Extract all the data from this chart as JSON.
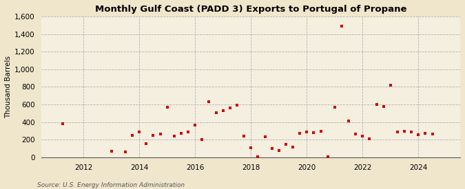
{
  "title": "Monthly Gulf Coast (PADD 3) Exports to Portugal of Propane",
  "ylabel": "Thousand Barrels",
  "source": "Source: U.S. Energy Information Administration",
  "bg_color": "#f0e6cc",
  "plot_bg_color": "#f5efe0",
  "marker_color": "#cc0000",
  "ylim": [
    0,
    1600
  ],
  "yticks": [
    0,
    200,
    400,
    600,
    800,
    1000,
    1200,
    1400,
    1600
  ],
  "xlim": [
    2010.5,
    2025.5
  ],
  "xticks": [
    2012,
    2014,
    2016,
    2018,
    2020,
    2022,
    2024
  ],
  "data": [
    [
      2011.25,
      385
    ],
    [
      2013.0,
      70
    ],
    [
      2013.5,
      65
    ],
    [
      2013.75,
      250
    ],
    [
      2014.0,
      290
    ],
    [
      2014.25,
      155
    ],
    [
      2014.5,
      250
    ],
    [
      2014.75,
      265
    ],
    [
      2015.0,
      570
    ],
    [
      2015.25,
      245
    ],
    [
      2015.5,
      270
    ],
    [
      2015.75,
      290
    ],
    [
      2016.0,
      365
    ],
    [
      2016.25,
      205
    ],
    [
      2016.5,
      630
    ],
    [
      2016.75,
      510
    ],
    [
      2017.0,
      530
    ],
    [
      2017.25,
      565
    ],
    [
      2017.5,
      590
    ],
    [
      2017.75,
      240
    ],
    [
      2018.0,
      110
    ],
    [
      2018.25,
      10
    ],
    [
      2018.5,
      235
    ],
    [
      2018.75,
      100
    ],
    [
      2019.0,
      80
    ],
    [
      2019.25,
      145
    ],
    [
      2019.5,
      120
    ],
    [
      2019.75,
      270
    ],
    [
      2020.0,
      290
    ],
    [
      2020.25,
      285
    ],
    [
      2020.5,
      300
    ],
    [
      2020.75,
      10
    ],
    [
      2021.0,
      570
    ],
    [
      2021.25,
      1490
    ],
    [
      2021.5,
      415
    ],
    [
      2021.75,
      265
    ],
    [
      2022.0,
      240
    ],
    [
      2022.25,
      210
    ],
    [
      2022.5,
      600
    ],
    [
      2022.75,
      580
    ],
    [
      2023.0,
      820
    ],
    [
      2023.25,
      290
    ],
    [
      2023.5,
      300
    ],
    [
      2023.75,
      290
    ],
    [
      2024.0,
      255
    ],
    [
      2024.25,
      270
    ],
    [
      2024.5,
      265
    ]
  ]
}
